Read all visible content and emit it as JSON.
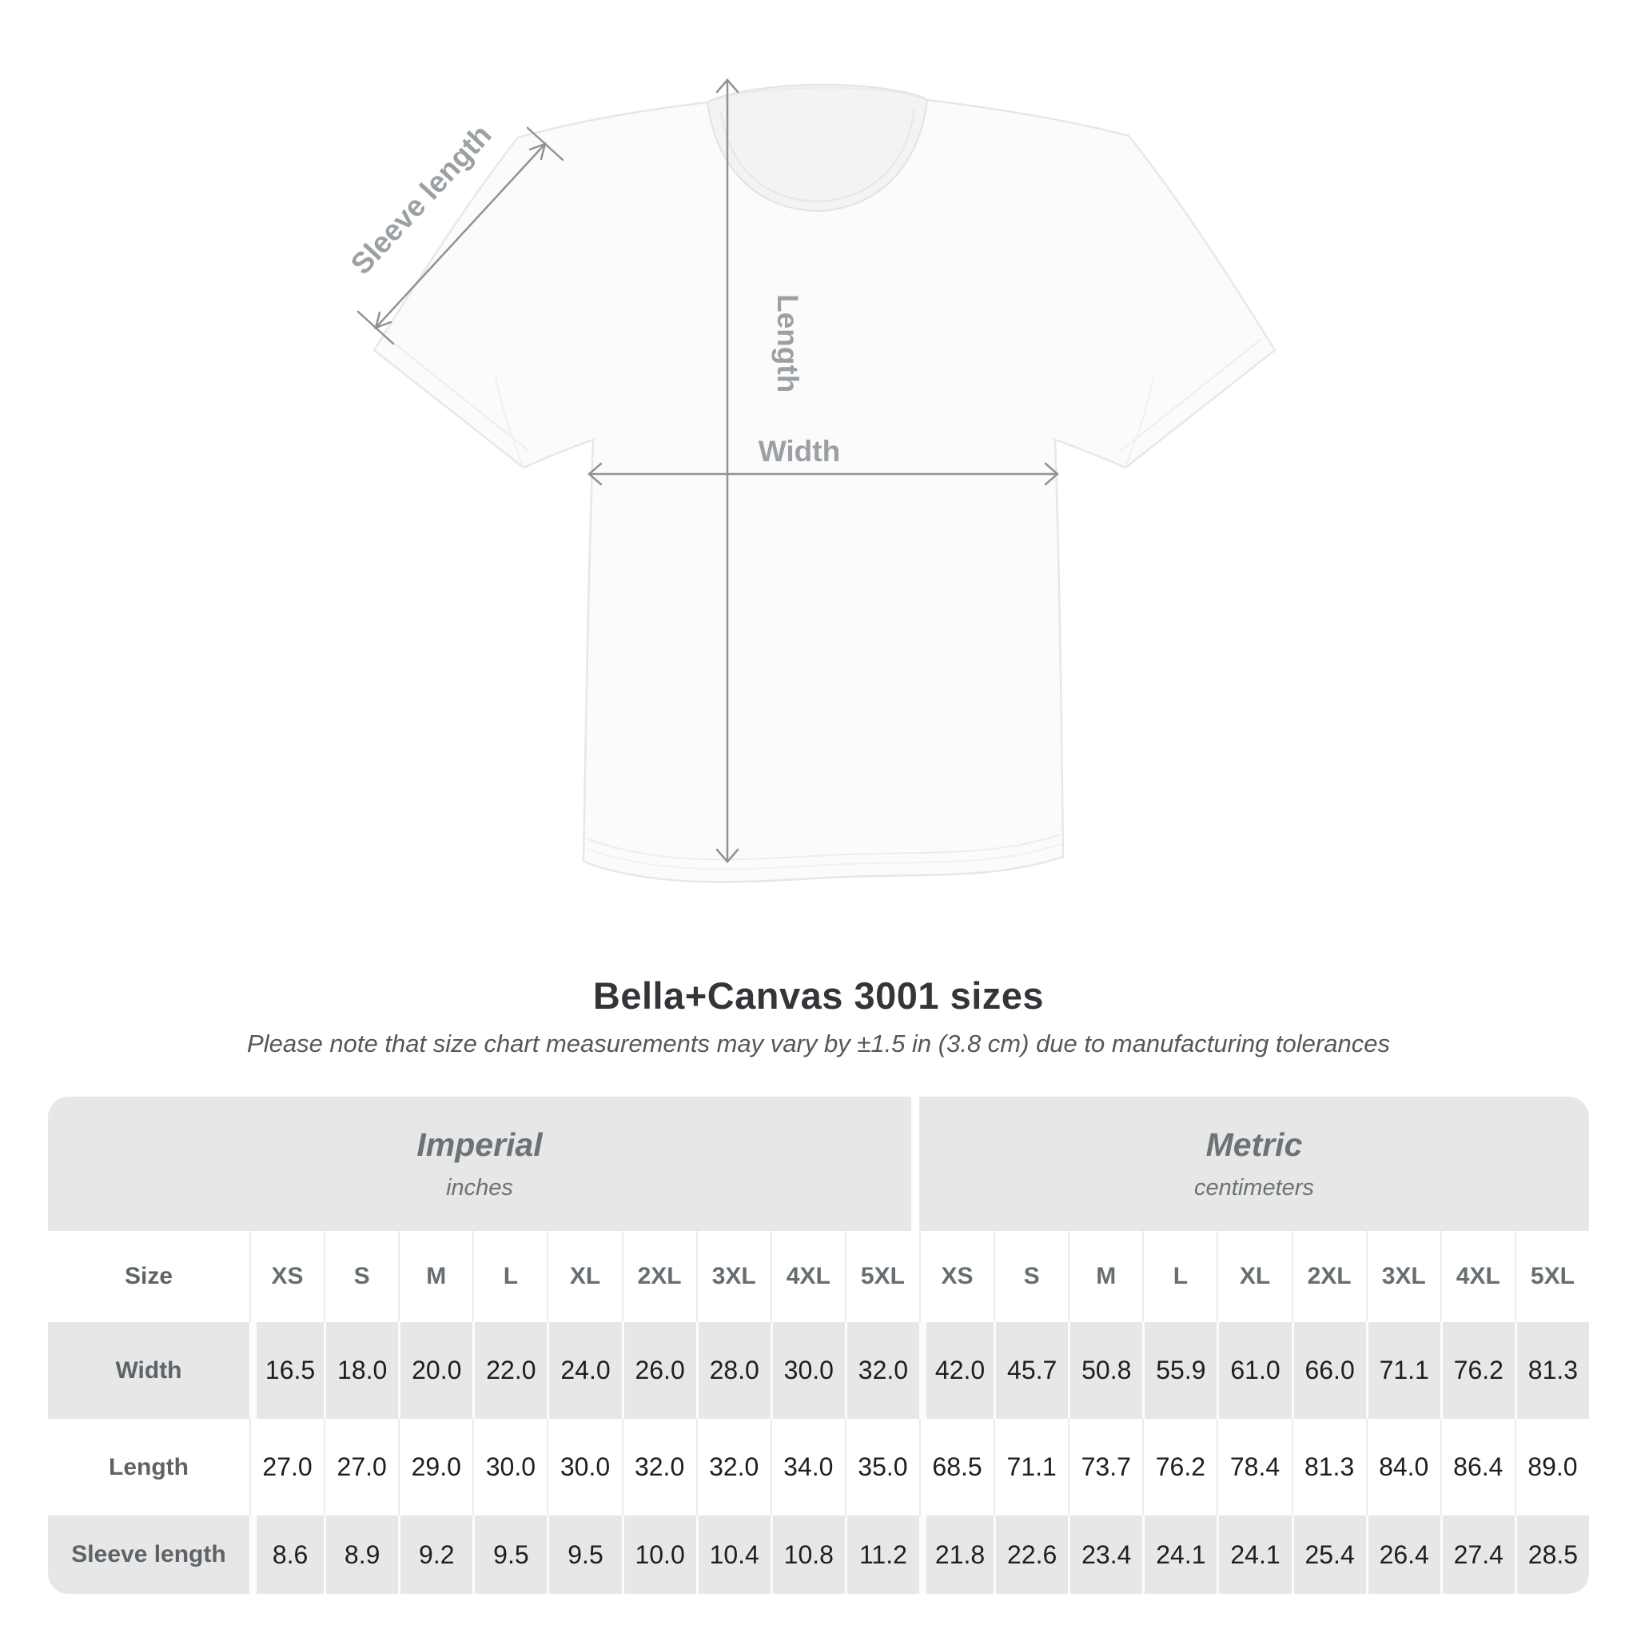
{
  "page": {
    "background": "#ffffff"
  },
  "diagram": {
    "sleeve_length_label": "Sleeve length",
    "length_label": "Length",
    "width_label": "Width",
    "line_color": "#8e9396",
    "label_color": "#9ba0a3"
  },
  "header": {
    "title": "Bella+Canvas 3001 sizes",
    "subtitle": "Please note that size chart measurements may vary by ±1.5 in (3.8 cm) due to manufacturing tolerances"
  },
  "size_chart": {
    "groups": [
      {
        "label": "Imperial",
        "units": "inches"
      },
      {
        "label": "Metric",
        "units": "centimeters"
      }
    ],
    "size_column_header": "Size",
    "sizes": [
      "XS",
      "S",
      "M",
      "L",
      "XL",
      "2XL",
      "3XL",
      "4XL",
      "5XL"
    ],
    "rows": [
      {
        "label": "Width",
        "imperial": [
          "16.5",
          "18.0",
          "20.0",
          "22.0",
          "24.0",
          "26.0",
          "28.0",
          "30.0",
          "32.0"
        ],
        "metric": [
          "42.0",
          "45.7",
          "50.8",
          "55.9",
          "61.0",
          "66.0",
          "71.1",
          "76.2",
          "81.3"
        ]
      },
      {
        "label": "Length",
        "imperial": [
          "27.0",
          "27.0",
          "29.0",
          "30.0",
          "30.0",
          "32.0",
          "32.0",
          "34.0",
          "35.0"
        ],
        "metric": [
          "68.5",
          "71.1",
          "73.7",
          "76.2",
          "78.4",
          "81.3",
          "84.0",
          "86.4",
          "89.0"
        ]
      },
      {
        "label": "Sleeve length",
        "imperial": [
          "8.6",
          "8.9",
          "9.2",
          "9.5",
          "9.5",
          "10.0",
          "10.4",
          "10.8",
          "11.2"
        ],
        "metric": [
          "21.8",
          "22.6",
          "23.4",
          "24.1",
          "24.1",
          "25.4",
          "26.4",
          "27.4",
          "28.5"
        ]
      }
    ],
    "colors": {
      "band_gray": "#e7e7e7",
      "value_text": "#1e1e1f",
      "header_text": "#666e71"
    }
  },
  "chart_data": {
    "type": "table",
    "title": "Bella+Canvas 3001 sizes",
    "note": "Please note that size chart measurements may vary by ±1.5 in (3.8 cm) due to manufacturing tolerances",
    "column_groups": [
      "Imperial (inches)",
      "Metric (centimeters)"
    ],
    "columns": [
      "Size",
      "XS",
      "S",
      "M",
      "L",
      "XL",
      "2XL",
      "3XL",
      "4XL",
      "5XL",
      "XS",
      "S",
      "M",
      "L",
      "XL",
      "2XL",
      "3XL",
      "4XL",
      "5XL"
    ],
    "rows": [
      [
        "Width",
        16.5,
        18.0,
        20.0,
        22.0,
        24.0,
        26.0,
        28.0,
        30.0,
        32.0,
        42.0,
        45.7,
        50.8,
        55.9,
        61.0,
        66.0,
        71.1,
        76.2,
        81.3
      ],
      [
        "Length",
        27.0,
        27.0,
        29.0,
        30.0,
        30.0,
        32.0,
        32.0,
        34.0,
        35.0,
        68.5,
        71.1,
        73.7,
        76.2,
        78.4,
        81.3,
        84.0,
        86.4,
        89.0
      ],
      [
        "Sleeve length",
        8.6,
        8.9,
        9.2,
        9.5,
        9.5,
        10.0,
        10.4,
        10.8,
        11.2,
        21.8,
        22.6,
        23.4,
        24.1,
        24.1,
        25.4,
        26.4,
        27.4,
        28.5
      ]
    ],
    "measurement_diagram_labels": [
      "Sleeve length",
      "Length",
      "Width"
    ]
  }
}
